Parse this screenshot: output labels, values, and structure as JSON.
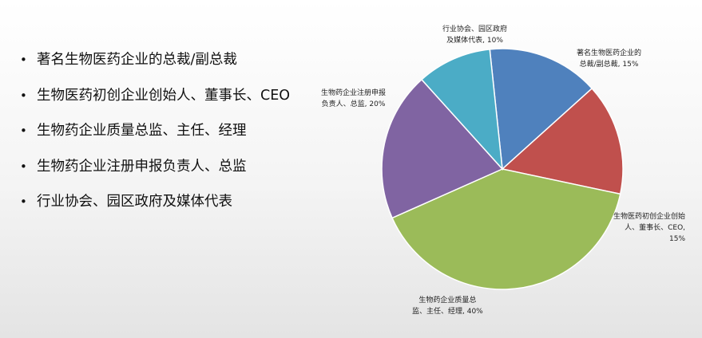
{
  "bullets": [
    "著名生物医药企业的总裁/副总裁",
    "生物医药初创企业创始人、董事长、CEO",
    "生物药企业质量总监、主任、经理",
    "生物药企业注册申报负责人、总监",
    "行业协会、园区政府及媒体代表"
  ],
  "chart_data": {
    "type": "pie",
    "slices": [
      {
        "label": "著名生物医药企业的总裁/副总裁",
        "value": 15,
        "color": "#4F81BD",
        "label_lines": [
          "著名生物医药企业的",
          "总裁/副总裁, 15%"
        ]
      },
      {
        "label": "生物医药初创企业创始人、董事长、CEO",
        "value": 15,
        "color": "#C0504D",
        "label_lines": [
          "生物医药初创企业创始",
          "人、董事长、CEO,",
          "15%"
        ]
      },
      {
        "label": "生物药企业质量总监、主任、经理",
        "value": 40,
        "color": "#9BBB59",
        "label_lines": [
          "生物药企业质量总",
          "监、主任、经理, 40%"
        ]
      },
      {
        "label": "生物药企业注册申报负责人、总监",
        "value": 20,
        "color": "#8064A2",
        "label_lines": [
          "生物药企业注册申报",
          "负责人、总监, 20%"
        ]
      },
      {
        "label": "行业协会、园区政府及媒体代表",
        "value": 10,
        "color": "#4BACC6",
        "label_lines": [
          "行业协会、园区政府",
          "及媒体代表, 10%"
        ]
      }
    ]
  }
}
